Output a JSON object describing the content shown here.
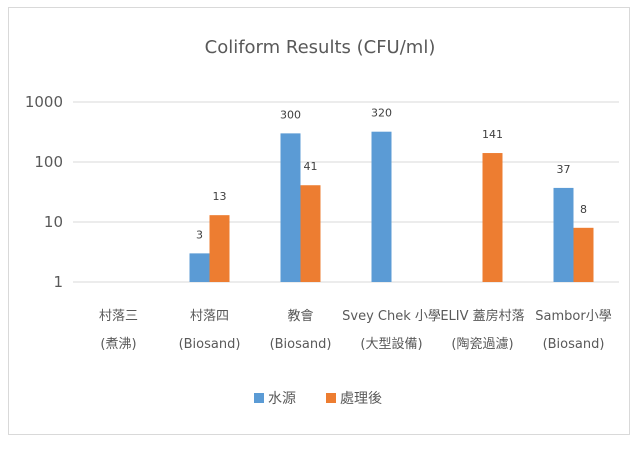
{
  "chart_data": {
    "type": "bar",
    "title": "Coliform Results (CFU/ml)",
    "y_scale": "log",
    "ylim": [
      1,
      1000
    ],
    "y_ticks": [
      "1",
      "10",
      "100",
      "1000"
    ],
    "categories": [
      [
        "村落三",
        "(煮沸)"
      ],
      [
        "村落四",
        "(Biosand)"
      ],
      [
        "教會",
        "(Biosand)"
      ],
      [
        "Svey Chek 小學",
        "(大型設備)"
      ],
      [
        "ELIV 蓋房村落",
        "(陶瓷過濾)"
      ],
      [
        "Sambor小學",
        "(Biosand)"
      ]
    ],
    "series": [
      {
        "name": "水源",
        "color": "#5b9bd5",
        "values": [
          null,
          3,
          300,
          320,
          null,
          37
        ]
      },
      {
        "name": "處理後",
        "color": "#ed7d31",
        "values": [
          null,
          13,
          41,
          null,
          141,
          8
        ]
      }
    ],
    "grid": true,
    "legend_position": "bottom"
  }
}
